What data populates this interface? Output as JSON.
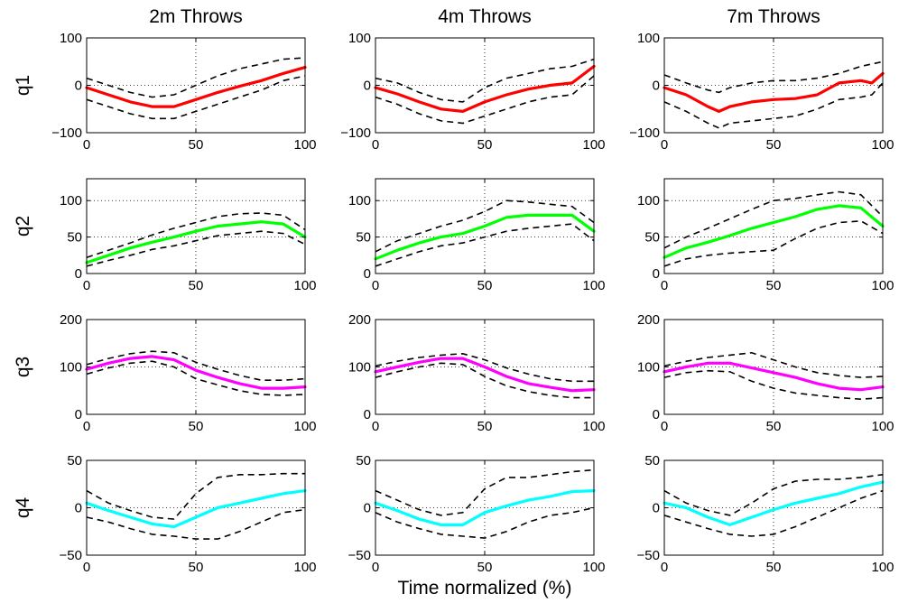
{
  "figure": {
    "xlabel": "Time normalized (%)"
  },
  "columns": [
    "2m Throws",
    "4m Throws",
    "7m Throws"
  ],
  "rows": [
    {
      "label": "q1",
      "color": "#ff0000",
      "ylim": [
        -100,
        100
      ],
      "yticks": [
        "−100",
        "0",
        "100"
      ],
      "ytick_values": [
        -100,
        0,
        100
      ]
    },
    {
      "label": "q2",
      "color": "#00ff00",
      "ylim": [
        0,
        130
      ],
      "yticks": [
        "0",
        "50",
        "100"
      ],
      "ytick_values": [
        0,
        50,
        100
      ]
    },
    {
      "label": "q3",
      "color": "#ff00ff",
      "ylim": [
        0,
        200
      ],
      "yticks": [
        "0",
        "100",
        "200"
      ],
      "ytick_values": [
        0,
        100,
        200
      ]
    },
    {
      "label": "q4",
      "color": "#00ffff",
      "ylim": [
        -50,
        50
      ],
      "yticks": [
        "−50",
        "0",
        "50"
      ],
      "ytick_values": [
        -50,
        0,
        50
      ]
    }
  ],
  "xticks": [
    "0",
    "50",
    "100"
  ],
  "chart_data": [
    {
      "type": "line",
      "row": "q1",
      "column": "2m Throws",
      "xlim": [
        0,
        100
      ],
      "ylim": [
        -100,
        100
      ],
      "grid": true,
      "x": [
        0,
        10,
        20,
        30,
        40,
        50,
        60,
        70,
        80,
        90,
        100
      ],
      "series": [
        {
          "role": "mean",
          "values": [
            -5,
            -20,
            -35,
            -45,
            -45,
            -30,
            -15,
            -2,
            10,
            25,
            38
          ]
        },
        {
          "role": "upper",
          "values": [
            15,
            0,
            -15,
            -25,
            -20,
            0,
            20,
            35,
            45,
            55,
            58
          ]
        },
        {
          "role": "lower",
          "values": [
            -30,
            -45,
            -60,
            -70,
            -70,
            -55,
            -40,
            -25,
            -10,
            10,
            20
          ]
        }
      ]
    },
    {
      "type": "line",
      "row": "q1",
      "column": "4m Throws",
      "xlim": [
        0,
        100
      ],
      "ylim": [
        -100,
        100
      ],
      "grid": true,
      "x": [
        0,
        10,
        20,
        30,
        40,
        50,
        60,
        70,
        80,
        90,
        100
      ],
      "series": [
        {
          "role": "mean",
          "values": [
            -5,
            -18,
            -35,
            -50,
            -55,
            -35,
            -20,
            -8,
            0,
            5,
            40
          ]
        },
        {
          "role": "upper",
          "values": [
            15,
            5,
            -15,
            -30,
            -35,
            -5,
            15,
            25,
            35,
            40,
            55
          ]
        },
        {
          "role": "lower",
          "values": [
            -25,
            -40,
            -60,
            -75,
            -80,
            -65,
            -50,
            -35,
            -25,
            -20,
            20
          ]
        }
      ]
    },
    {
      "type": "line",
      "row": "q1",
      "column": "7m Throws",
      "xlim": [
        0,
        100
      ],
      "ylim": [
        -100,
        100
      ],
      "grid": true,
      "x": [
        0,
        10,
        20,
        25,
        30,
        40,
        50,
        60,
        70,
        80,
        90,
        95,
        100
      ],
      "series": [
        {
          "role": "mean",
          "values": [
            -5,
            -20,
            -45,
            -55,
            -45,
            -35,
            -30,
            -28,
            -20,
            5,
            10,
            5,
            25
          ]
        },
        {
          "role": "upper",
          "values": [
            22,
            5,
            -10,
            -15,
            -5,
            5,
            10,
            10,
            15,
            25,
            40,
            45,
            50
          ]
        },
        {
          "role": "lower",
          "values": [
            -35,
            -55,
            -80,
            -90,
            -80,
            -75,
            -70,
            -65,
            -50,
            -30,
            -25,
            -20,
            5
          ]
        }
      ]
    },
    {
      "type": "line",
      "row": "q2",
      "column": "2m Throws",
      "xlim": [
        0,
        100
      ],
      "ylim": [
        0,
        130
      ],
      "grid": true,
      "x": [
        0,
        10,
        20,
        30,
        40,
        50,
        60,
        70,
        80,
        90,
        100
      ],
      "series": [
        {
          "role": "mean",
          "values": [
            15,
            25,
            35,
            43,
            50,
            58,
            65,
            68,
            71,
            68,
            50
          ]
        },
        {
          "role": "upper",
          "values": [
            22,
            32,
            42,
            53,
            62,
            70,
            78,
            82,
            83,
            80,
            60
          ]
        },
        {
          "role": "lower",
          "values": [
            10,
            18,
            25,
            33,
            38,
            45,
            52,
            55,
            58,
            55,
            40
          ]
        }
      ]
    },
    {
      "type": "line",
      "row": "q2",
      "column": "4m Throws",
      "xlim": [
        0,
        100
      ],
      "ylim": [
        0,
        130
      ],
      "grid": true,
      "x": [
        0,
        10,
        20,
        30,
        40,
        50,
        60,
        70,
        80,
        90,
        100
      ],
      "series": [
        {
          "role": "mean",
          "values": [
            20,
            32,
            42,
            50,
            55,
            65,
            77,
            80,
            80,
            80,
            58
          ]
        },
        {
          "role": "upper",
          "values": [
            30,
            45,
            55,
            65,
            73,
            85,
            100,
            98,
            95,
            92,
            70
          ]
        },
        {
          "role": "lower",
          "values": [
            10,
            20,
            30,
            38,
            42,
            50,
            58,
            62,
            65,
            68,
            45
          ]
        }
      ]
    },
    {
      "type": "line",
      "row": "q2",
      "column": "7m Throws",
      "xlim": [
        0,
        100
      ],
      "ylim": [
        0,
        130
      ],
      "grid": true,
      "x": [
        0,
        10,
        20,
        30,
        40,
        50,
        60,
        70,
        80,
        90,
        100
      ],
      "series": [
        {
          "role": "mean",
          "values": [
            22,
            35,
            43,
            52,
            62,
            70,
            78,
            88,
            93,
            90,
            65
          ]
        },
        {
          "role": "upper",
          "values": [
            35,
            50,
            62,
            75,
            88,
            100,
            103,
            108,
            112,
            108,
            78
          ]
        },
        {
          "role": "lower",
          "values": [
            10,
            20,
            25,
            28,
            30,
            32,
            48,
            62,
            70,
            72,
            55
          ]
        }
      ]
    },
    {
      "type": "line",
      "row": "q3",
      "column": "2m Throws",
      "xlim": [
        0,
        100
      ],
      "ylim": [
        0,
        200
      ],
      "grid": true,
      "x": [
        0,
        10,
        20,
        30,
        40,
        50,
        60,
        70,
        80,
        90,
        100
      ],
      "series": [
        {
          "role": "mean",
          "values": [
            95,
            108,
            118,
            122,
            115,
            93,
            78,
            65,
            55,
            55,
            58
          ]
        },
        {
          "role": "upper",
          "values": [
            105,
            118,
            128,
            133,
            130,
            110,
            95,
            82,
            72,
            72,
            75
          ]
        },
        {
          "role": "lower",
          "values": [
            85,
            98,
            108,
            112,
            100,
            75,
            62,
            50,
            42,
            40,
            42
          ]
        }
      ]
    },
    {
      "type": "line",
      "row": "q3",
      "column": "4m Throws",
      "xlim": [
        0,
        100
      ],
      "ylim": [
        0,
        200
      ],
      "grid": true,
      "x": [
        0,
        10,
        20,
        30,
        40,
        50,
        60,
        70,
        80,
        90,
        100
      ],
      "series": [
        {
          "role": "mean",
          "values": [
            90,
            100,
            110,
            118,
            118,
            100,
            80,
            65,
            57,
            50,
            52
          ]
        },
        {
          "role": "upper",
          "values": [
            102,
            112,
            120,
            125,
            128,
            115,
            98,
            85,
            75,
            70,
            70
          ]
        },
        {
          "role": "lower",
          "values": [
            78,
            90,
            100,
            108,
            105,
            80,
            60,
            48,
            40,
            35,
            35
          ]
        }
      ]
    },
    {
      "type": "line",
      "row": "q3",
      "column": "7m Throws",
      "xlim": [
        0,
        100
      ],
      "ylim": [
        0,
        200
      ],
      "grid": true,
      "x": [
        0,
        10,
        20,
        30,
        40,
        50,
        60,
        70,
        80,
        90,
        100
      ],
      "series": [
        {
          "role": "mean",
          "values": [
            90,
            100,
            108,
            108,
            98,
            88,
            78,
            65,
            55,
            52,
            58
          ]
        },
        {
          "role": "upper",
          "values": [
            102,
            112,
            120,
            125,
            130,
            115,
            100,
            88,
            82,
            78,
            80
          ]
        },
        {
          "role": "lower",
          "values": [
            78,
            88,
            92,
            90,
            70,
            55,
            45,
            40,
            35,
            32,
            35
          ]
        }
      ]
    },
    {
      "type": "line",
      "row": "q4",
      "column": "2m Throws",
      "xlim": [
        0,
        100
      ],
      "ylim": [
        -50,
        50
      ],
      "grid": true,
      "x": [
        0,
        10,
        20,
        30,
        40,
        50,
        60,
        70,
        80,
        90,
        100
      ],
      "series": [
        {
          "role": "mean",
          "values": [
            5,
            -3,
            -10,
            -17,
            -20,
            -10,
            0,
            5,
            10,
            15,
            18
          ]
        },
        {
          "role": "upper",
          "values": [
            18,
            5,
            -3,
            -10,
            -12,
            15,
            32,
            35,
            35,
            36,
            36
          ]
        },
        {
          "role": "lower",
          "values": [
            -10,
            -15,
            -22,
            -28,
            -30,
            -33,
            -33,
            -25,
            -15,
            -5,
            -2
          ]
        }
      ]
    },
    {
      "type": "line",
      "row": "q4",
      "column": "4m Throws",
      "xlim": [
        0,
        100
      ],
      "ylim": [
        -50,
        50
      ],
      "grid": true,
      "x": [
        0,
        10,
        20,
        30,
        40,
        50,
        60,
        70,
        80,
        90,
        100
      ],
      "series": [
        {
          "role": "mean",
          "values": [
            5,
            -3,
            -12,
            -18,
            -18,
            -5,
            2,
            8,
            12,
            17,
            18
          ]
        },
        {
          "role": "upper",
          "values": [
            18,
            8,
            -2,
            -8,
            -5,
            20,
            32,
            32,
            35,
            38,
            40
          ]
        },
        {
          "role": "lower",
          "values": [
            -5,
            -15,
            -22,
            -28,
            -30,
            -32,
            -25,
            -15,
            -8,
            -5,
            0
          ]
        }
      ]
    },
    {
      "type": "line",
      "row": "q4",
      "column": "7m Throws",
      "xlim": [
        0,
        100
      ],
      "ylim": [
        -50,
        50
      ],
      "grid": true,
      "x": [
        0,
        10,
        20,
        30,
        40,
        50,
        60,
        70,
        80,
        90,
        100
      ],
      "series": [
        {
          "role": "mean",
          "values": [
            5,
            0,
            -10,
            -18,
            -10,
            -2,
            5,
            10,
            15,
            22,
            27
          ]
        },
        {
          "role": "upper",
          "values": [
            18,
            5,
            -3,
            -8,
            5,
            20,
            28,
            30,
            30,
            32,
            35
          ]
        },
        {
          "role": "lower",
          "values": [
            -8,
            -15,
            -22,
            -28,
            -30,
            -28,
            -20,
            -10,
            0,
            10,
            18
          ]
        }
      ]
    }
  ]
}
